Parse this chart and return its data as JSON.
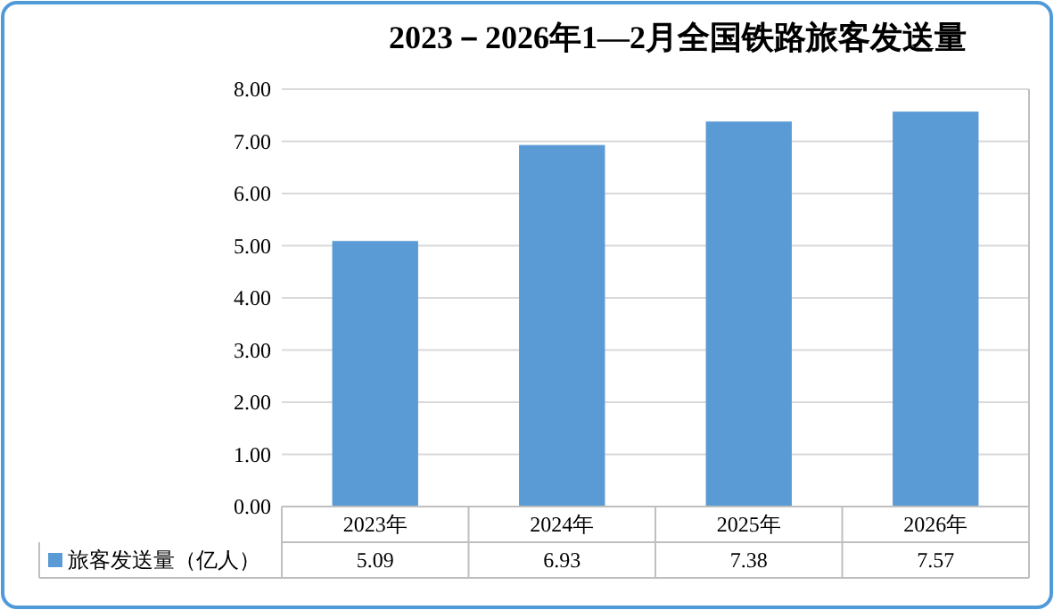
{
  "chart_data": {
    "type": "bar",
    "title": "2023－2026年1—2月全国铁路旅客发送量",
    "categories": [
      "2023年",
      "2024年",
      "2025年",
      "2026年"
    ],
    "series": [
      {
        "name": "旅客发送量（亿人）",
        "color": "#5b9bd5",
        "values": [
          5.09,
          6.93,
          7.38,
          7.57
        ]
      }
    ],
    "ylim": [
      0,
      8
    ],
    "yticks": [
      {
        "value": 0,
        "label": "0.00"
      },
      {
        "value": 1,
        "label": "1.00"
      },
      {
        "value": 2,
        "label": "2.00"
      },
      {
        "value": 3,
        "label": "3.00"
      },
      {
        "value": 4,
        "label": "4.00"
      },
      {
        "value": 5,
        "label": "5.00"
      },
      {
        "value": 6,
        "label": "6.00"
      },
      {
        "value": 7,
        "label": "7.00"
      },
      {
        "value": 8,
        "label": "8.00"
      }
    ],
    "grid": "y",
    "data_labels": true,
    "legend": "bottom"
  }
}
